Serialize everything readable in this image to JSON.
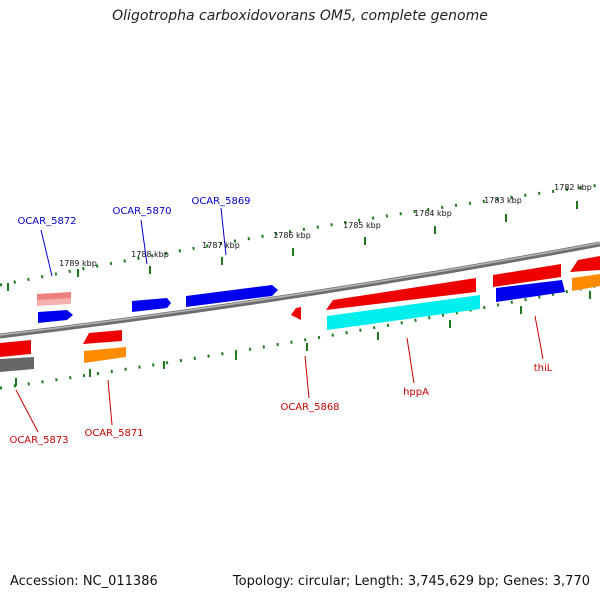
{
  "title": "Oligotropha carboxidovorans OM5, complete genome",
  "footer": {
    "accession": "Accession: NC_011386",
    "summary": "Topology: circular; Length: 3,745,629 bp; Genes: 3,770"
  },
  "colors": {
    "backbone": "#7d7d7d",
    "tick": "#1f7a1f",
    "label_forward": "#0000cc",
    "label_reverse": "#cc0000",
    "red": "#ee0000",
    "blue": "#0000ee",
    "cyan": "#00eeee",
    "orange": "#ff8c00",
    "pink": "#ee7f7f",
    "gray": "#666666"
  },
  "scale": {
    "ticks": [
      "1789 kbp",
      "1788 kbp",
      "1787 kbp",
      "1786 kbp",
      "1785 kbp",
      "1784 kbp",
      "1783 kbp",
      "1782 kbp"
    ]
  },
  "gene_labels": {
    "forward": [
      "OCAR_5872",
      "OCAR_5870",
      "OCAR_5869"
    ],
    "reverse": [
      "OCAR_5873",
      "OCAR_5871",
      "OCAR_5868",
      "hppA",
      "thiL"
    ]
  }
}
